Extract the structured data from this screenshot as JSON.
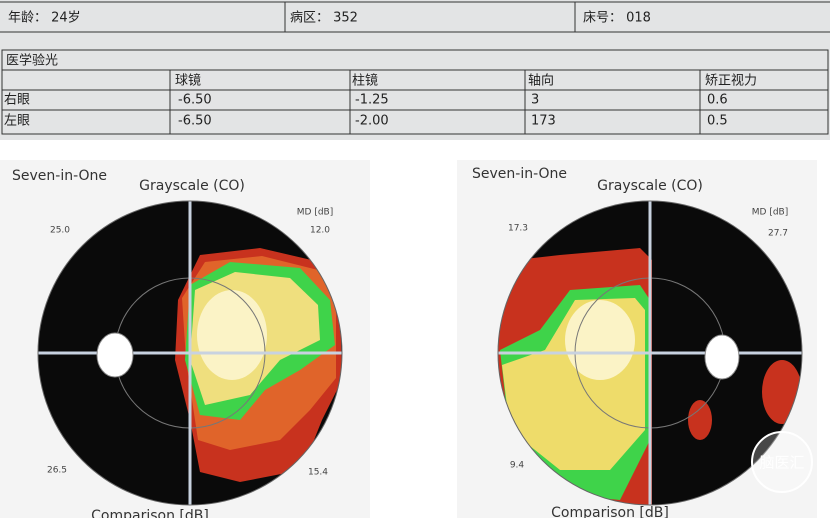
{
  "header": {
    "age": "年龄： 24岁",
    "ward": "病区： 352",
    "bed": "床号： 018"
  },
  "refraction": {
    "title": "医学验光",
    "columns": [
      "球镜",
      "柱镜",
      "轴向",
      "矫正视力"
    ],
    "rows": [
      [
        "右眼",
        "-6.50",
        "-1.25",
        "3",
        "0.6"
      ],
      [
        "左眼",
        "-6.50",
        "-2.00",
        "173",
        "0.5"
      ]
    ]
  },
  "panels": [
    {
      "brand": "Seven-in-One",
      "title": "Grayscale (CO)",
      "md_label": "MD [dB]",
      "top_left": "25.0",
      "top_right": "12.0",
      "bottom_left": "26.5",
      "bottom_right": "15.4",
      "footer": "Comparison [dB]"
    },
    {
      "brand": "Seven-in-One",
      "title": "Grayscale (CO)",
      "md_label": "MD [dB]",
      "top_left": "17.3",
      "top_right": "27.7",
      "bottom_left": "9.4",
      "footer": "Comparison [dB]"
    }
  ],
  "watermark": "脑医汇"
}
